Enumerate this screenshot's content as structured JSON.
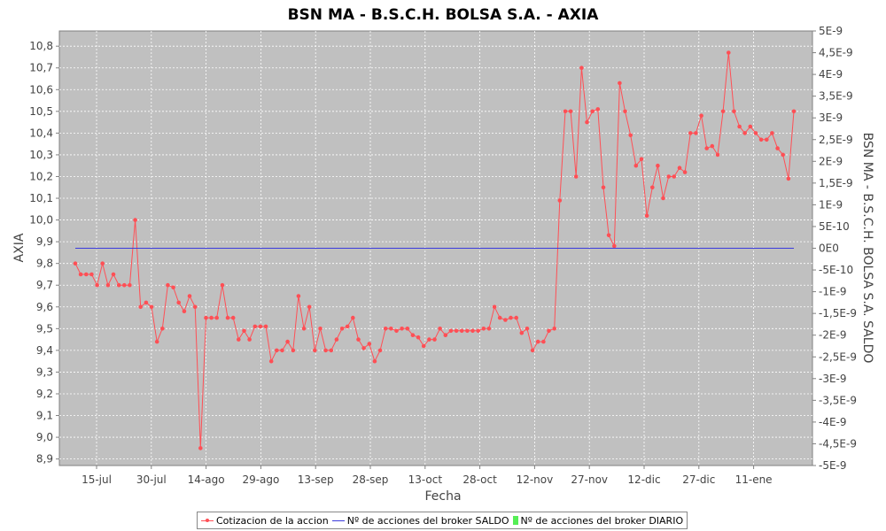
{
  "chart_data": {
    "type": "line",
    "title": "BSN MA - B.S.C.H. BOLSA S.A. - AXIA",
    "xlabel": "Fecha",
    "ylabel": "AXIA",
    "y2label": "BSN MA - B.S.C.H. BOLSA S.A. SALDO",
    "x_ticks": [
      "15-jul",
      "30-jul",
      "14-ago",
      "29-ago",
      "13-sep",
      "28-sep",
      "13-oct",
      "28-oct",
      "12-nov",
      "27-nov",
      "12-dic",
      "27-dic",
      "11-ene"
    ],
    "y_ticks": [
      "10,8",
      "10,7",
      "10,6",
      "10,5",
      "10,4",
      "10,3",
      "10,2",
      "10,1",
      "10,0",
      "9,9",
      "9,8",
      "9,7",
      "9,6",
      "9,5",
      "9,4",
      "9,3",
      "9,2",
      "9,1",
      "9,0",
      "8,9"
    ],
    "y2_ticks": [
      "5E-9",
      "4,5E-9",
      "4E-9",
      "3,5E-9",
      "3E-9",
      "2,5E-9",
      "2E-9",
      "1,5E-9",
      "1E-9",
      "5E-10",
      "0E0",
      "-5E-10",
      "-1E-9",
      "-1,5E-9",
      "-2E-9",
      "-2,5E-9",
      "-3E-9",
      "-3,5E-9",
      "-4E-9",
      "-4,5E-9",
      "-5E-9"
    ],
    "ylim": [
      8.87,
      10.87
    ],
    "y2lim": [
      -5e-09,
      5e-09
    ],
    "grid": true,
    "legend_position": "bottom",
    "series": [
      {
        "name": "Cotizacion de la accion",
        "color": "#ff4f55",
        "axis": "left",
        "values": [
          9.8,
          9.75,
          9.75,
          9.75,
          9.7,
          9.8,
          9.7,
          9.75,
          9.7,
          9.7,
          9.7,
          10.0,
          9.6,
          9.62,
          9.6,
          9.44,
          9.5,
          9.7,
          9.69,
          9.62,
          9.58,
          9.65,
          9.6,
          8.95,
          9.55,
          9.55,
          9.55,
          9.7,
          9.55,
          9.55,
          9.45,
          9.49,
          9.45,
          9.51,
          9.51,
          9.51,
          9.35,
          9.4,
          9.4,
          9.44,
          9.4,
          9.65,
          9.5,
          9.6,
          9.4,
          9.5,
          9.4,
          9.4,
          9.45,
          9.5,
          9.51,
          9.55,
          9.45,
          9.41,
          9.43,
          9.35,
          9.4,
          9.5,
          9.5,
          9.49,
          9.5,
          9.5,
          9.47,
          9.46,
          9.42,
          9.45,
          9.45,
          9.5,
          9.47,
          9.49,
          9.49,
          9.49,
          9.49,
          9.49,
          9.49,
          9.5,
          9.5,
          9.6,
          9.55,
          9.54,
          9.55,
          9.55,
          9.48,
          9.5,
          9.4,
          9.44,
          9.44,
          9.49,
          9.5,
          10.09,
          10.5,
          10.5,
          10.2,
          10.7,
          10.45,
          10.5,
          10.51,
          10.15,
          9.93,
          9.88,
          10.63,
          10.5,
          10.39,
          10.25,
          10.28,
          10.02,
          10.15,
          10.25,
          10.1,
          10.2,
          10.2,
          10.24,
          10.22,
          10.4,
          10.4,
          10.48,
          10.33,
          10.34,
          10.3,
          10.5,
          10.77,
          10.5,
          10.43,
          10.4,
          10.43,
          10.4,
          10.37,
          10.37,
          10.4,
          10.33,
          10.3,
          10.19,
          10.5
        ]
      },
      {
        "name": "Nº de acciones del broker SALDO",
        "color": "#3b3bdd",
        "axis": "right",
        "values": [
          0,
          0
        ]
      },
      {
        "name": "Nº de acciones del broker DIARIO",
        "color": "#55ee55",
        "axis": "right",
        "values": []
      }
    ]
  }
}
